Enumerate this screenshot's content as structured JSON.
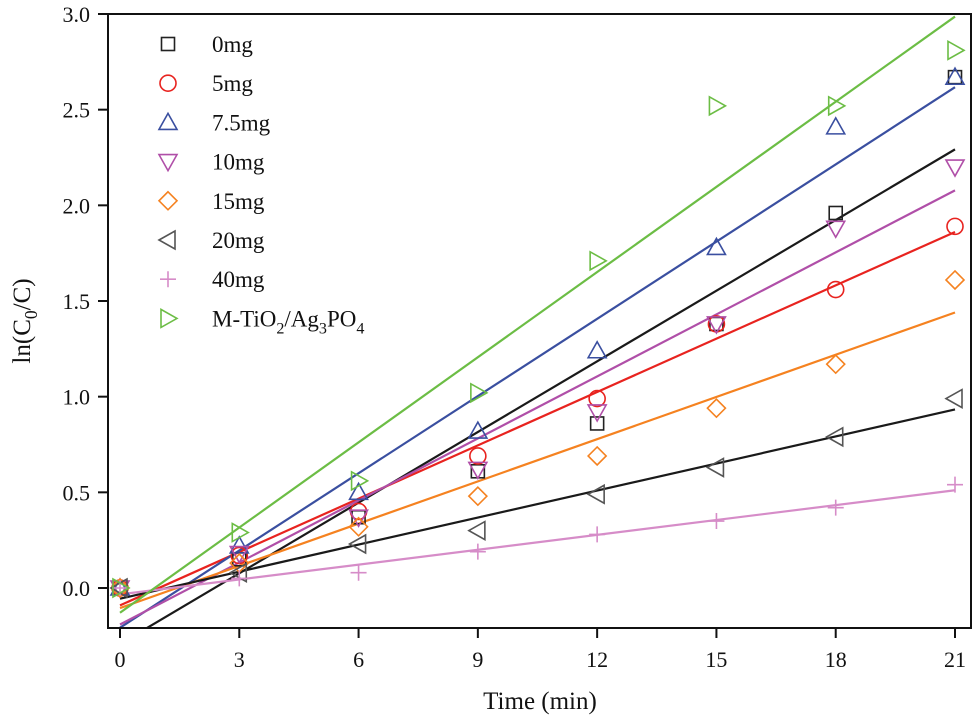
{
  "chart_data": {
    "type": "scatter",
    "title": "",
    "xlabel": "Time (min)",
    "ylabel": "ln(C0/C)",
    "xlim": [
      -0.3,
      21.4
    ],
    "ylim": [
      -0.21,
      3.0
    ],
    "xticks": [
      0,
      3,
      6,
      9,
      12,
      15,
      18,
      21
    ],
    "yticks": [
      "0.0",
      "0.5",
      "1.0",
      "1.5",
      "2.0",
      "2.5",
      "3.0"
    ],
    "grid": false,
    "legend_position": "top-left",
    "fit_lines": "linear",
    "x": [
      0,
      3,
      6,
      9,
      12,
      15,
      18,
      21
    ],
    "series": [
      {
        "name": "0mg",
        "marker": "square",
        "color": "#222222",
        "line_color": "#1a1a1a",
        "values": [
          0,
          0.15,
          0.37,
          0.61,
          0.86,
          1.38,
          1.96,
          2.67
        ]
      },
      {
        "name": "5mg",
        "marker": "circle",
        "color": "#e8231f",
        "line_color": "#e8231f",
        "values": [
          0,
          0.17,
          0.4,
          0.69,
          0.99,
          1.38,
          1.56,
          1.89
        ]
      },
      {
        "name": "7.5mg",
        "marker": "triangle-up",
        "color": "#3a4fa0",
        "line_color": "#3a4fa0",
        "values": [
          0,
          0.22,
          0.5,
          0.82,
          1.24,
          1.78,
          2.41,
          2.67
        ]
      },
      {
        "name": "10mg",
        "marker": "triangle-down",
        "color": "#b04fa8",
        "line_color": "#b04fa8",
        "values": [
          0,
          0.18,
          0.37,
          0.62,
          0.92,
          1.38,
          1.88,
          2.2
        ]
      },
      {
        "name": "15mg",
        "marker": "diamond",
        "color": "#f58220",
        "line_color": "#f58220",
        "values": [
          0,
          0.13,
          0.32,
          0.48,
          0.69,
          0.94,
          1.17,
          1.61
        ]
      },
      {
        "name": "20mg",
        "marker": "triangle-left",
        "color": "#555555",
        "line_color": "#1a1a1a",
        "values": [
          0,
          0.08,
          0.23,
          0.3,
          0.49,
          0.63,
          0.79,
          0.99
        ]
      },
      {
        "name": "40mg",
        "marker": "plus",
        "color": "#d68cc8",
        "line_color": "#d68cc8",
        "values": [
          0,
          0.05,
          0.08,
          0.19,
          0.28,
          0.35,
          0.42,
          0.54
        ]
      },
      {
        "name": "M-TiO2/Ag3PO4",
        "marker": "triangle-right",
        "color": "#6cbd45",
        "line_color": "#6cbd45",
        "values": [
          0,
          0.29,
          0.56,
          1.02,
          1.71,
          2.52,
          2.52,
          2.81
        ]
      }
    ]
  }
}
